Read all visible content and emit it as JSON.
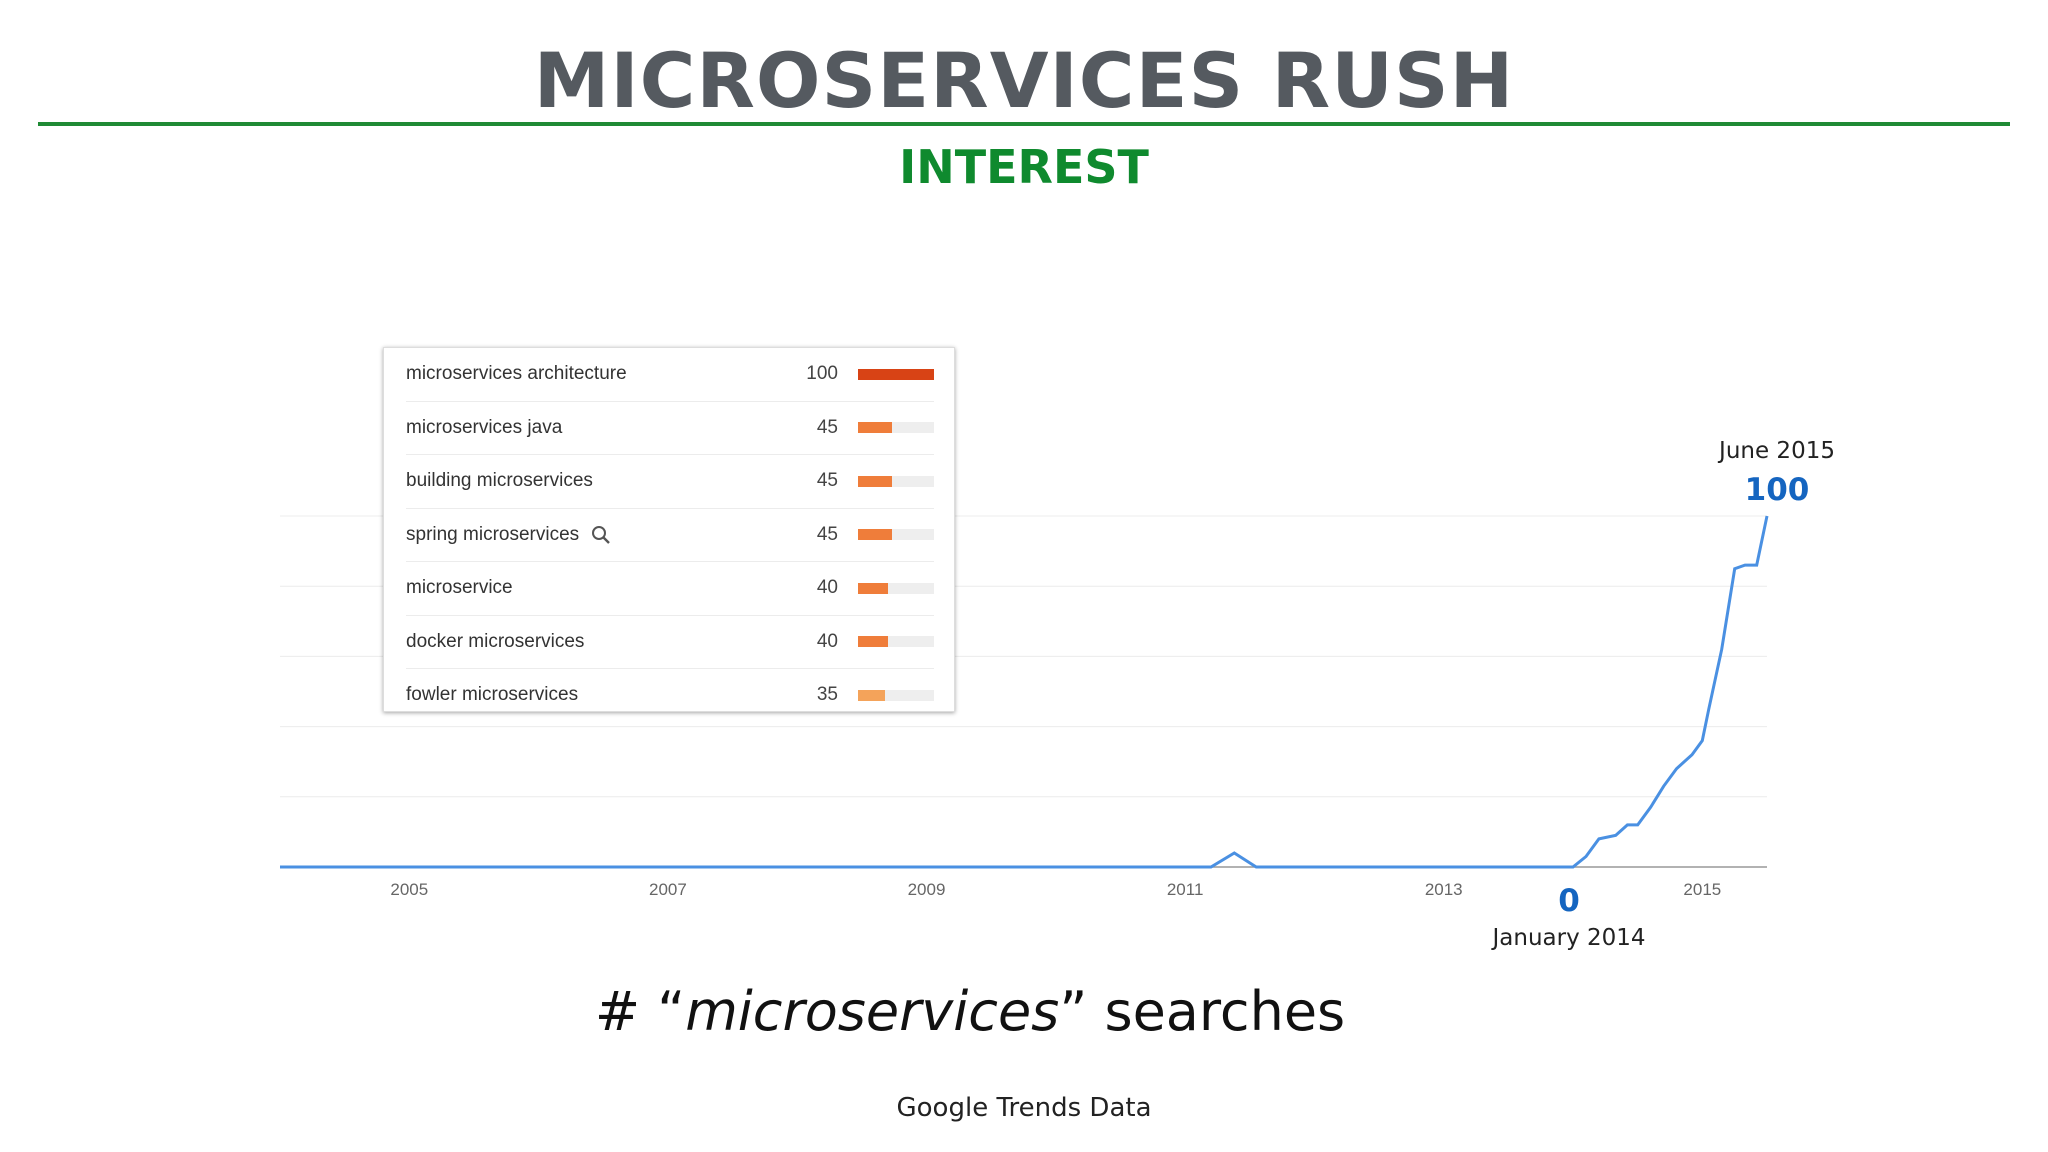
{
  "slide": {
    "title": "MICROSERVICES RUSH",
    "subtitle": "INTEREST",
    "caption_prefix": "# “",
    "caption_em": "microservices",
    "caption_suffix": "” searches",
    "source": "Google Trends Data"
  },
  "colors": {
    "title": "#555a60",
    "rule": "#1f8a35",
    "subtitle": "#0f8a2e",
    "line": "#4a90e2",
    "annotation_value": "#1565c0",
    "bar_top": "#d84315",
    "bar_mid": "#ef7d3a",
    "bar_low": "#f4a35a"
  },
  "chart_data": [
    {
      "type": "line",
      "title": "",
      "xlabel": "",
      "ylabel": "",
      "x_ticks": [
        "2005",
        "2007",
        "2009",
        "2011",
        "2013",
        "2015"
      ],
      "xlim": [
        2004.0,
        2015.5
      ],
      "ylim": [
        0,
        100
      ],
      "grid": true,
      "series": [
        {
          "x": [
            2004.0,
            2011.2,
            2011.38,
            2011.55,
            2014.0,
            2014.1,
            2014.2,
            2014.33,
            2014.42,
            2014.5,
            2014.6,
            2014.7,
            2014.8,
            2014.92,
            2015.0,
            2015.05,
            2015.15,
            2015.25,
            2015.33,
            2015.42,
            2015.5
          ],
          "y": [
            0,
            0,
            4,
            0,
            0,
            3,
            8,
            9,
            12,
            12,
            17,
            23,
            28,
            32,
            36,
            45,
            62,
            85,
            86,
            86,
            100
          ]
        }
      ],
      "annotations": [
        {
          "label": "June 2015",
          "value": "100",
          "x": 2015.5,
          "y": 100
        },
        {
          "label": "January 2014",
          "value": "0",
          "x": 2014.0,
          "y": 0
        }
      ]
    },
    {
      "type": "bar",
      "title": "",
      "orientation": "horizontal",
      "categories": [
        "microservices architecture",
        "microservices java",
        "building microservices",
        "spring microservices",
        "microservice",
        "docker microservices",
        "fowler microservices"
      ],
      "values": [
        100,
        45,
        45,
        45,
        40,
        40,
        35
      ],
      "value_labels": [
        "100",
        "45",
        "45",
        "45",
        "40",
        "40",
        "35"
      ],
      "xlim": [
        0,
        100
      ],
      "icons": {
        "spring microservices": "search-icon"
      }
    }
  ]
}
